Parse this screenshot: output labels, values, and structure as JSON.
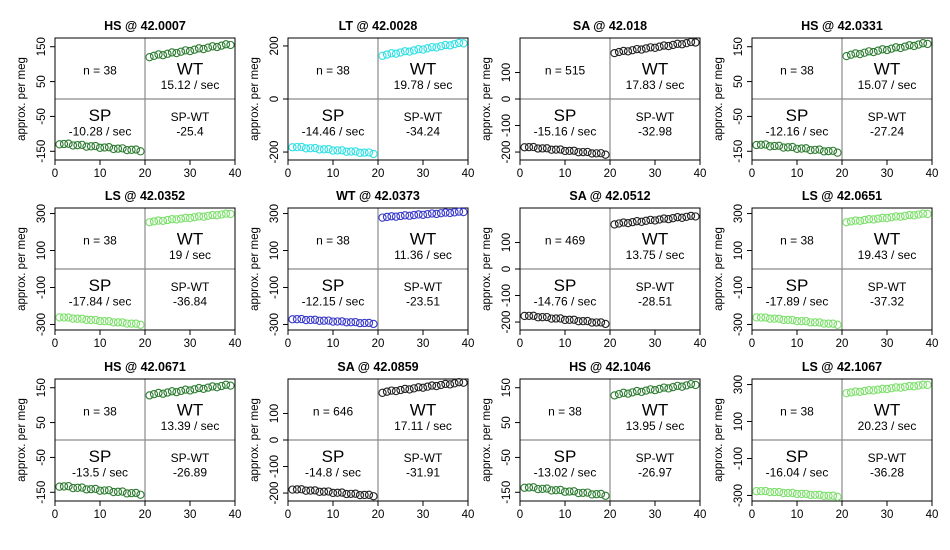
{
  "chart_data": [
    {
      "type": "scatter",
      "title": "HS @ 42.0007",
      "ylabel": "approx. per meg",
      "xlim": [
        0,
        40
      ],
      "ylim": [
        -175,
        175
      ],
      "yticks": [
        -150,
        -50,
        50,
        150
      ],
      "xticks": [
        0,
        10,
        20,
        30,
        40
      ],
      "ytick_labels": [
        "-150",
        "-50",
        "50",
        "150"
      ],
      "xtick_labels": [
        "0",
        "10",
        "20",
        "30",
        "40"
      ],
      "color": "#2e7d32",
      "n_label": "n = 38",
      "wt_label": "WT",
      "wt_rate": "15.12 / sec",
      "sp_label": "SP",
      "sp_rate": "-10.28 / sec",
      "diff_label": "SP-WT",
      "diff_value": "-25.4",
      "sp_start": -128,
      "sp_end": -148,
      "wt_start": 122,
      "wt_end": 157
    },
    {
      "type": "scatter",
      "title": "LT @ 42.0028",
      "ylabel": "approx. per meg",
      "xlim": [
        0,
        40
      ],
      "ylim": [
        -230,
        230
      ],
      "yticks": [
        -200,
        0,
        200
      ],
      "xticks": [
        0,
        10,
        20,
        30,
        40
      ],
      "ytick_labels": [
        "-200",
        "0",
        "200"
      ],
      "xtick_labels": [
        "0",
        "10",
        "20",
        "30",
        "40"
      ],
      "color": "#2fe0e6",
      "n_label": "n = 38",
      "wt_label": "WT",
      "wt_rate": "19.78 / sec",
      "sp_label": "SP",
      "sp_rate": "-14.46 / sec",
      "diff_label": "SP-WT",
      "diff_value": "-34.24",
      "sp_start": -180,
      "sp_end": -205,
      "wt_start": 165,
      "wt_end": 212
    },
    {
      "type": "scatter",
      "title": "SA @ 42.018",
      "ylabel": "approx. per meg",
      "xlim": [
        0,
        40
      ],
      "ylim": [
        -230,
        230
      ],
      "yticks": [
        -200,
        -100,
        0,
        100
      ],
      "xticks": [
        0,
        10,
        20,
        30,
        40
      ],
      "ytick_labels": [
        "-200",
        "-100",
        "0",
        "100"
      ],
      "xtick_labels": [
        "0",
        "10",
        "20",
        "30",
        "40"
      ],
      "color": "#222222",
      "n_label": "n = 515",
      "wt_label": "WT",
      "wt_rate": "17.83 / sec",
      "sp_label": "SP",
      "sp_rate": "-15.16 / sec",
      "diff_label": "SP-WT",
      "diff_value": "-32.98",
      "sp_start": -180,
      "sp_end": -208,
      "wt_start": 175,
      "wt_end": 215
    },
    {
      "type": "scatter",
      "title": "HS @ 42.0331",
      "ylabel": "approx. per meg",
      "xlim": [
        0,
        40
      ],
      "ylim": [
        -175,
        175
      ],
      "yticks": [
        -150,
        -50,
        50,
        150
      ],
      "xticks": [
        0,
        10,
        20,
        30,
        40
      ],
      "ytick_labels": [
        "-150",
        "-50",
        "50",
        "150"
      ],
      "xtick_labels": [
        "0",
        "10",
        "20",
        "30",
        "40"
      ],
      "color": "#2e7d32",
      "n_label": "n = 38",
      "wt_label": "WT",
      "wt_rate": "15.07 / sec",
      "sp_label": "SP",
      "sp_rate": "-12.16 / sec",
      "diff_label": "SP-WT",
      "diff_value": "-27.24",
      "sp_start": -130,
      "sp_end": -152,
      "wt_start": 125,
      "wt_end": 160
    },
    {
      "type": "scatter",
      "title": "LS @ 42.0352",
      "ylabel": "approx. per meg",
      "xlim": [
        0,
        40
      ],
      "ylim": [
        -330,
        330
      ],
      "yticks": [
        -300,
        -100,
        100,
        300
      ],
      "xticks": [
        0,
        10,
        20,
        30,
        40
      ],
      "ytick_labels": [
        "-300",
        "-100",
        "100",
        "300"
      ],
      "xtick_labels": [
        "0",
        "10",
        "20",
        "30",
        "40"
      ],
      "color": "#7be06a",
      "n_label": "n = 38",
      "wt_label": "WT",
      "wt_rate": "19 / sec",
      "sp_label": "SP",
      "sp_rate": "-17.84 / sec",
      "diff_label": "SP-WT",
      "diff_value": "-36.84",
      "sp_start": -260,
      "sp_end": -300,
      "wt_start": 255,
      "wt_end": 300
    },
    {
      "type": "scatter",
      "title": "WT @ 42.0373",
      "ylabel": "approx. per meg",
      "xlim": [
        0,
        40
      ],
      "ylim": [
        -330,
        330
      ],
      "yticks": [
        -300,
        -100,
        100,
        300
      ],
      "xticks": [
        0,
        10,
        20,
        30,
        40
      ],
      "ytick_labels": [
        "-300",
        "-100",
        "100",
        "300"
      ],
      "xtick_labels": [
        "0",
        "10",
        "20",
        "30",
        "40"
      ],
      "color": "#3a3acc",
      "n_label": "n = 38",
      "wt_label": "WT",
      "wt_rate": "11.36 / sec",
      "sp_label": "SP",
      "sp_rate": "-12.15 / sec",
      "diff_label": "SP-WT",
      "diff_value": "-23.51",
      "sp_start": -270,
      "sp_end": -295,
      "wt_start": 280,
      "wt_end": 310
    },
    {
      "type": "scatter",
      "title": "SA @ 42.0512",
      "ylabel": "approx. per meg",
      "xlim": [
        0,
        40
      ],
      "ylim": [
        -230,
        230
      ],
      "yticks": [
        -200,
        -100,
        0,
        100
      ],
      "xticks": [
        0,
        10,
        20,
        30,
        40
      ],
      "ytick_labels": [
        "-200",
        "-100",
        "0",
        "100"
      ],
      "xtick_labels": [
        "0",
        "10",
        "20",
        "30",
        "40"
      ],
      "color": "#222222",
      "n_label": "n = 469",
      "wt_label": "WT",
      "wt_rate": "13.75 / sec",
      "sp_label": "SP",
      "sp_rate": "-14.76 / sec",
      "diff_label": "SP-WT",
      "diff_value": "-28.51",
      "sp_start": -175,
      "sp_end": -205,
      "wt_start": 170,
      "wt_end": 200
    },
    {
      "type": "scatter",
      "title": "LS @ 42.0651",
      "ylabel": "approx. per meg",
      "xlim": [
        0,
        40
      ],
      "ylim": [
        -330,
        330
      ],
      "yticks": [
        -300,
        -100,
        100,
        300
      ],
      "xticks": [
        0,
        10,
        20,
        30,
        40
      ],
      "ytick_labels": [
        "-300",
        "-100",
        "100",
        "300"
      ],
      "xtick_labels": [
        "0",
        "10",
        "20",
        "30",
        "40"
      ],
      "color": "#7be06a",
      "n_label": "n = 38",
      "wt_label": "WT",
      "wt_rate": "19.43 / sec",
      "sp_label": "SP",
      "sp_rate": "-17.89 / sec",
      "diff_label": "SP-WT",
      "diff_value": "-37.32",
      "sp_start": -260,
      "sp_end": -300,
      "wt_start": 255,
      "wt_end": 300
    },
    {
      "type": "scatter",
      "title": "HS @ 42.0671",
      "ylabel": "approx. per meg",
      "xlim": [
        0,
        40
      ],
      "ylim": [
        -175,
        175
      ],
      "yticks": [
        -150,
        -50,
        50,
        150
      ],
      "xticks": [
        0,
        10,
        20,
        30,
        40
      ],
      "ytick_labels": [
        "-150",
        "-50",
        "50",
        "150"
      ],
      "xtick_labels": [
        "0",
        "10",
        "20",
        "30",
        "40"
      ],
      "color": "#2e7d32",
      "n_label": "n = 38",
      "wt_label": "WT",
      "wt_rate": "13.39 / sec",
      "sp_label": "SP",
      "sp_rate": "-13.5 / sec",
      "diff_label": "SP-WT",
      "diff_value": "-26.89",
      "sp_start": -132,
      "sp_end": -155,
      "wt_start": 130,
      "wt_end": 158
    },
    {
      "type": "scatter",
      "title": "SA @ 42.0859",
      "ylabel": "approx. per meg",
      "xlim": [
        0,
        40
      ],
      "ylim": [
        -230,
        230
      ],
      "yticks": [
        -200,
        -100,
        0,
        100
      ],
      "xticks": [
        0,
        10,
        20,
        30,
        40
      ],
      "ytick_labels": [
        "-200",
        "-100",
        "0",
        "100"
      ],
      "xtick_labels": [
        "0",
        "10",
        "20",
        "30",
        "40"
      ],
      "color": "#222222",
      "n_label": "n = 646",
      "wt_label": "WT",
      "wt_rate": "17.11 / sec",
      "sp_label": "SP",
      "sp_rate": "-14.8 / sec",
      "diff_label": "SP-WT",
      "diff_value": "-31.91",
      "sp_start": -185,
      "sp_end": -210,
      "wt_start": 180,
      "wt_end": 218
    },
    {
      "type": "scatter",
      "title": "HS @ 42.1046",
      "ylabel": "approx. per meg",
      "xlim": [
        0,
        40
      ],
      "ylim": [
        -175,
        175
      ],
      "yticks": [
        -150,
        -50,
        50,
        150
      ],
      "xticks": [
        0,
        10,
        20,
        30,
        40
      ],
      "ytick_labels": [
        "-150",
        "-50",
        "50",
        "150"
      ],
      "xtick_labels": [
        "0",
        "10",
        "20",
        "30",
        "40"
      ],
      "color": "#2e7d32",
      "n_label": "n = 38",
      "wt_label": "WT",
      "wt_rate": "13.95 / sec",
      "sp_label": "SP",
      "sp_rate": "-13.02 / sec",
      "diff_label": "SP-WT",
      "diff_value": "-26.97",
      "sp_start": -135,
      "sp_end": -158,
      "wt_start": 130,
      "wt_end": 160
    },
    {
      "type": "scatter",
      "title": "LS @ 42.1067",
      "ylabel": "approx. per meg",
      "xlim": [
        0,
        40
      ],
      "ylim": [
        -330,
        330
      ],
      "yticks": [
        -300,
        -100,
        100,
        300
      ],
      "xticks": [
        0,
        10,
        20,
        30,
        40
      ],
      "ytick_labels": [
        "-300",
        "-100",
        "100",
        "300"
      ],
      "xtick_labels": [
        "0",
        "10",
        "20",
        "30",
        "40"
      ],
      "color": "#7be06a",
      "n_label": "n = 38",
      "wt_label": "WT",
      "wt_rate": "20.23 / sec",
      "sp_label": "SP",
      "sp_rate": "-16.04 / sec",
      "diff_label": "SP-WT",
      "diff_value": "-36.28",
      "sp_start": -275,
      "sp_end": -305,
      "wt_start": 255,
      "wt_end": 300
    }
  ]
}
